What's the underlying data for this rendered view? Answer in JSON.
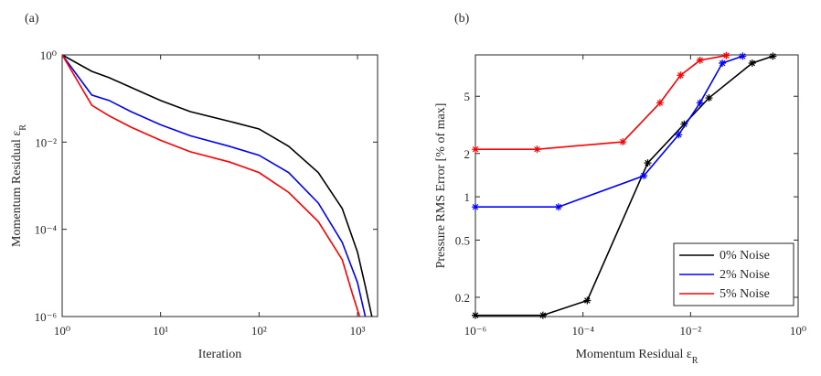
{
  "chart_data": [
    {
      "type": "line",
      "panel_label": "(a)",
      "xscale": "log",
      "yscale": "log",
      "x_label": "Iteration",
      "y_label": {
        "text": "Momentum Residual ε",
        "subscript": "R"
      },
      "xlim": [
        1,
        1600
      ],
      "ylim": [
        1e-06,
        1
      ],
      "xticks": [
        {
          "value": 1,
          "label": "10⁰"
        },
        {
          "value": 10,
          "label": "10¹"
        },
        {
          "value": 100,
          "label": "10²"
        },
        {
          "value": 1000,
          "label": "10³"
        }
      ],
      "yticks": [
        {
          "value": 1e-06,
          "label": "10⁻⁶"
        },
        {
          "value": 0.0001,
          "label": "10⁻⁴"
        },
        {
          "value": 0.01,
          "label": "10⁻²"
        },
        {
          "value": 1,
          "label": "10⁰"
        }
      ],
      "series": [
        {
          "color": "#000000",
          "x": [
            1,
            2,
            3,
            5,
            10,
            20,
            50,
            100,
            200,
            400,
            700,
            1000,
            1200,
            1400
          ],
          "values": [
            1,
            0.42,
            0.3,
            0.18,
            0.09,
            0.05,
            0.03,
            0.02,
            0.008,
            0.002,
            0.0003,
            3e-05,
            5e-06,
            1e-06
          ]
        },
        {
          "color": "#0000ff",
          "x": [
            1,
            2,
            3,
            5,
            10,
            20,
            50,
            100,
            200,
            400,
            700,
            1000,
            1200
          ],
          "values": [
            1,
            0.12,
            0.09,
            0.05,
            0.025,
            0.014,
            0.008,
            0.005,
            0.002,
            0.0004,
            5e-05,
            6e-06,
            1e-06
          ]
        },
        {
          "color": "#ff0000",
          "x": [
            1,
            2,
            3,
            5,
            10,
            20,
            50,
            100,
            200,
            400,
            700,
            900,
            1050
          ],
          "values": [
            1,
            0.07,
            0.04,
            0.022,
            0.011,
            0.006,
            0.0035,
            0.002,
            0.0007,
            0.00015,
            2e-05,
            3e-06,
            1e-06
          ]
        }
      ]
    },
    {
      "type": "line",
      "panel_label": "(b)",
      "xscale": "log",
      "yscale": "log",
      "marker": "asterisk",
      "legend": "lower right",
      "x_label": {
        "text": "Momentum Residual ε",
        "subscript": "R"
      },
      "y_label": "Pressure RMS Error [% of max]",
      "xlim": [
        1e-06,
        1
      ],
      "ylim": [
        0.147,
        9.7
      ],
      "xticks": [
        {
          "value": 1e-06,
          "label": "10⁻⁶"
        },
        {
          "value": 0.0001,
          "label": "10⁻⁴"
        },
        {
          "value": 0.01,
          "label": "10⁻²"
        },
        {
          "value": 1,
          "label": "10⁰"
        }
      ],
      "yticks": [
        0.2,
        0.5,
        1,
        2,
        5
      ],
      "series": [
        {
          "name": "0% Noise",
          "color": "#000000",
          "x": [
            1e-06,
            1.8e-05,
            0.00012,
            0.0016,
            0.0076,
            0.022,
            0.14,
            0.34
          ],
          "values": [
            0.15,
            0.15,
            0.19,
            1.72,
            3.2,
            4.87,
            8.5,
            9.5
          ]
        },
        {
          "name": "2% Noise",
          "color": "#0000ff",
          "x": [
            1e-06,
            3.5e-05,
            0.00135,
            0.006,
            0.015,
            0.039,
            0.093
          ],
          "values": [
            0.85,
            0.85,
            1.4,
            2.7,
            4.5,
            8.5,
            9.5
          ]
        },
        {
          "name": "5% Noise",
          "color": "#ff0000",
          "x": [
            1e-06,
            1.4e-05,
            0.00055,
            0.0027,
            0.0065,
            0.015,
            0.046
          ],
          "values": [
            2.14,
            2.14,
            2.41,
            4.5,
            7.0,
            8.9,
            9.6
          ]
        }
      ]
    }
  ]
}
